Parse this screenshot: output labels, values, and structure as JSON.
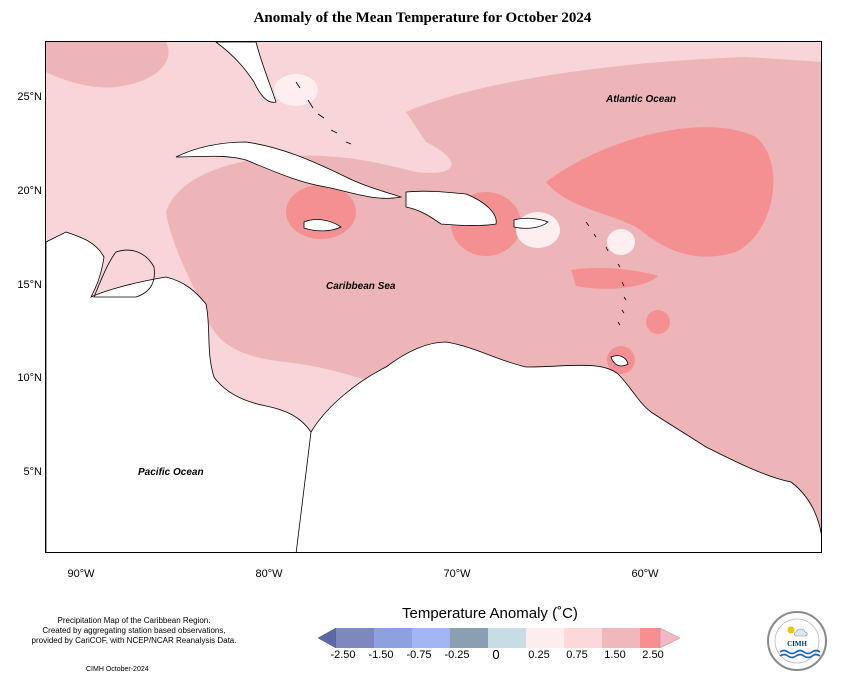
{
  "title": "Anomaly of the Mean Temperature for October 2024",
  "map": {
    "lat_labels": [
      "25°N",
      "20°N",
      "15°N",
      "10°N",
      "5°N"
    ],
    "lon_labels": [
      "90°W",
      "80°W",
      "70°W",
      "60°W"
    ],
    "ocean_labels": {
      "atlantic": "Atlantic Ocean",
      "caribbean": "Caribbean Sea",
      "pacific": "Pacific Ocean"
    }
  },
  "legend": {
    "title": "Temperature Anomaly (˚C)",
    "ticks": [
      "-2.50",
      "-1.50",
      "-0.75",
      "-0.25",
      "0",
      "0.25",
      "0.75",
      "1.50",
      "2.50"
    ],
    "colors": [
      "#7f87bf",
      "#8fa0df",
      "#a4b5f3",
      "#8aa0b0",
      "#c7dde3",
      "#fdeeee",
      "#fbd8da",
      "#f0b8ba",
      "#f78e90",
      "#f4b6c2"
    ]
  },
  "colors": {
    "anom_025_075": "#f8d5d8",
    "anom_075_150": "#edb5b7",
    "anom_150_250": "#f49092",
    "anom_0_025": "#fdeef0",
    "land": "#ffffff"
  },
  "footnote": {
    "lines": [
      "Precipitation Map of the Caribbean Region.",
      "Created by aggregating station based observations,",
      "provided by CariCOF, with NCEP/NCAR Reanalysis Data."
    ],
    "date": "CIMH October-2024"
  },
  "logo": {
    "text": "CIMH"
  }
}
